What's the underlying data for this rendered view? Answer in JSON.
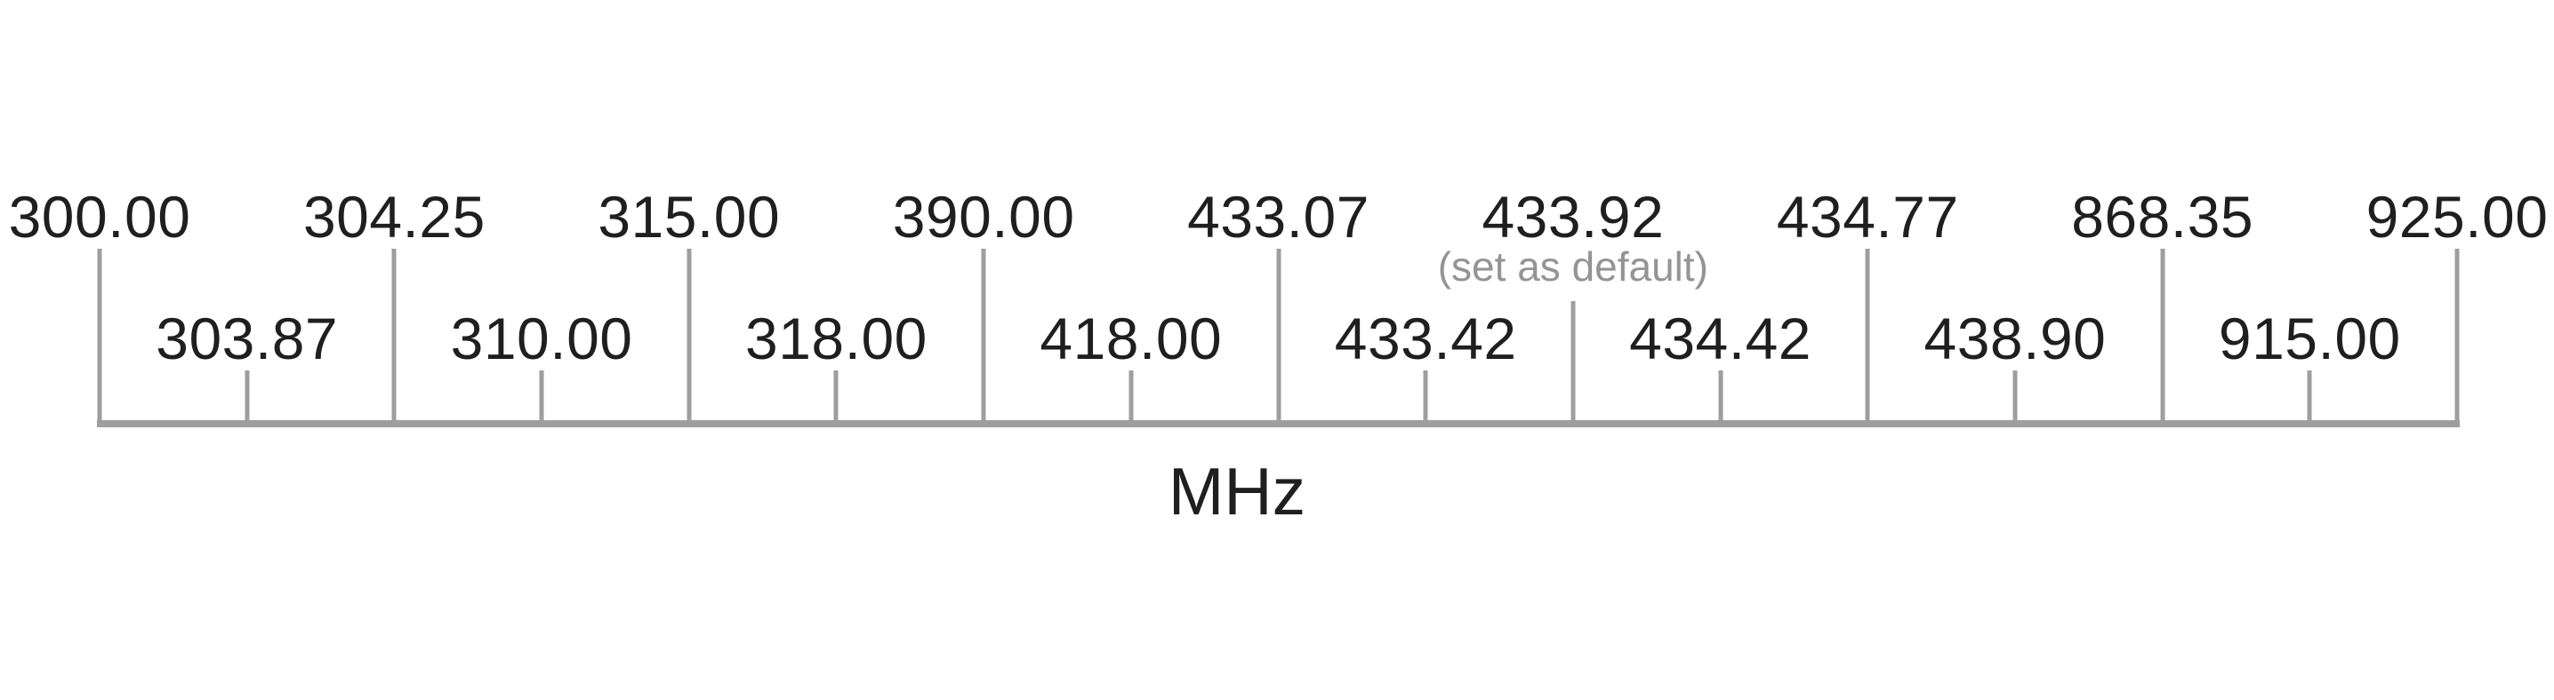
{
  "figure": {
    "unit": "MHz",
    "default_note": "(set as default)",
    "colors": {
      "label_text": "#1f1f1f",
      "axis_gray": "#9e9e9e",
      "note_gray": "#949494"
    },
    "frequencies": [
      {
        "label": "300.00",
        "row": "top"
      },
      {
        "label": "303.87",
        "row": "bottom"
      },
      {
        "label": "304.25",
        "row": "top"
      },
      {
        "label": "310.00",
        "row": "bottom"
      },
      {
        "label": "315.00",
        "row": "top"
      },
      {
        "label": "318.00",
        "row": "bottom"
      },
      {
        "label": "390.00",
        "row": "top"
      },
      {
        "label": "418.00",
        "row": "bottom"
      },
      {
        "label": "433.07",
        "row": "top"
      },
      {
        "label": "433.42",
        "row": "bottom"
      },
      {
        "label": "433.92",
        "row": "top",
        "is_default": true
      },
      {
        "label": "434.42",
        "row": "bottom"
      },
      {
        "label": "434.77",
        "row": "top"
      },
      {
        "label": "438.90",
        "row": "bottom"
      },
      {
        "label": "868.35",
        "row": "top"
      },
      {
        "label": "915.00",
        "row": "bottom"
      },
      {
        "label": "925.00",
        "row": "top"
      }
    ]
  }
}
